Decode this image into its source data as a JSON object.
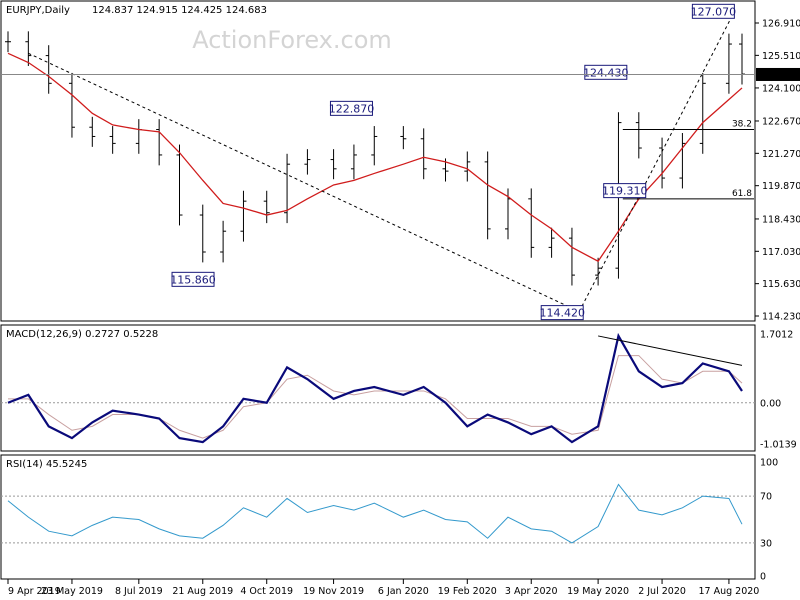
{
  "header": {
    "symbol": "EURJPY,Daily",
    "ohlc": "124.837 124.915 124.425 124.683"
  },
  "watermark": "ActionForex.com",
  "colors": {
    "bars": "#000000",
    "sma": "#d01c1c",
    "macd": "#0a0a7a",
    "signal": "#c8a0a0",
    "rsi": "#3399cc",
    "trendline": "#000000",
    "label_border": "#1a1a7a",
    "last_price_bg": "#000000"
  },
  "chart_data": [
    {
      "type": "line",
      "title": "EURJPY,Daily",
      "subtitle": "124.837 124.915 124.425 124.683",
      "x_ticks": [
        "9 Apr 2019",
        "23 May 2019",
        "8 Jul 2019",
        "21 Aug 2019",
        "4 Oct 2019",
        "19 Nov 2019",
        "6 Jan 2020",
        "19 Feb 2020",
        "3 Apr 2020",
        "19 May 2020",
        "2 Jul 2020",
        "17 Aug 2020"
      ],
      "y_ticks": [
        "126.910",
        "125.510",
        "124.100",
        "122.670",
        "121.270",
        "119.870",
        "118.430",
        "117.030",
        "115.630",
        "114.230"
      ],
      "ylim": [
        114.23,
        127.3
      ],
      "last_price": "124.683",
      "x": [
        "2019-04-09",
        "2019-04-23",
        "2019-05-07",
        "2019-05-23",
        "2019-06-06",
        "2019-06-20",
        "2019-07-08",
        "2019-07-22",
        "2019-08-05",
        "2019-08-21",
        "2019-09-04",
        "2019-09-18",
        "2019-10-04",
        "2019-10-18",
        "2019-11-01",
        "2019-11-19",
        "2019-12-03",
        "2019-12-17",
        "2020-01-06",
        "2020-01-20",
        "2020-02-04",
        "2020-02-19",
        "2020-03-04",
        "2020-03-18",
        "2020-04-03",
        "2020-04-17",
        "2020-05-01",
        "2020-05-19",
        "2020-06-02",
        "2020-06-16",
        "2020-07-02",
        "2020-07-16",
        "2020-07-30",
        "2020-08-17",
        "2020-08-26"
      ],
      "series": [
        {
          "values": [
            126.1,
            125.5,
            124.3,
            122.4,
            122.0,
            121.7,
            122.3,
            121.2,
            118.6,
            117.0,
            117.9,
            119.2,
            118.7,
            120.8,
            121.0,
            120.6,
            121.2,
            122.0,
            121.9,
            120.6,
            120.5,
            120.9,
            118.0,
            119.3,
            117.2,
            117.6,
            116.0,
            116.3,
            122.6,
            121.5,
            120.2,
            121.7,
            124.3,
            126.0,
            124.7
          ]
        },
        {
          "values": [
            125.6,
            125.2,
            124.6,
            123.8,
            123.0,
            122.5,
            122.3,
            122.2,
            121.3,
            120.1,
            119.1,
            118.9,
            118.6,
            118.8,
            119.3,
            119.9,
            120.1,
            120.4,
            120.8,
            121.1,
            120.9,
            120.6,
            119.9,
            119.4,
            118.6,
            118.0,
            117.2,
            116.6,
            117.9,
            119.3,
            120.4,
            121.5,
            122.6,
            123.6,
            124.1
          ]
        }
      ],
      "annotations": [
        {
          "label": "127.070",
          "x": "2020-08-18",
          "y": 127.07
        },
        {
          "label": "124.430",
          "x": "2020-06-05",
          "y": 124.43
        },
        {
          "label": "122.870",
          "x": "2019-12-13",
          "y": 122.87
        },
        {
          "label": "115.860",
          "x": "2019-08-26",
          "y": 115.86
        },
        {
          "label": "114.420",
          "x": "2020-05-06",
          "y": 114.42
        },
        {
          "label": "119.310",
          "x": "2020-06-18",
          "y": 119.31
        }
      ],
      "fib_levels": [
        {
          "label": "38.2",
          "y": 122.3
        },
        {
          "label": "61.8",
          "y": 119.3
        }
      ]
    },
    {
      "type": "line",
      "title": "MACD(12,26,9) 0.2727 0.5228",
      "y_ticks": [
        "1.7012",
        "0.00",
        "-1.0139"
      ],
      "ylim": [
        -1.1,
        1.8
      ],
      "x": [
        "2019-04-09",
        "2019-04-23",
        "2019-05-07",
        "2019-05-23",
        "2019-06-06",
        "2019-06-20",
        "2019-07-08",
        "2019-07-22",
        "2019-08-05",
        "2019-08-21",
        "2019-09-04",
        "2019-09-18",
        "2019-10-04",
        "2019-10-18",
        "2019-11-01",
        "2019-11-19",
        "2019-12-03",
        "2019-12-17",
        "2020-01-06",
        "2020-01-20",
        "2020-02-04",
        "2020-02-19",
        "2020-03-04",
        "2020-03-18",
        "2020-04-03",
        "2020-04-17",
        "2020-05-01",
        "2020-05-19",
        "2020-06-02",
        "2020-06-16",
        "2020-07-02",
        "2020-07-16",
        "2020-07-30",
        "2020-08-17",
        "2020-08-26"
      ],
      "series": [
        {
          "values": [
            0.0,
            0.2,
            -0.6,
            -0.9,
            -0.5,
            -0.2,
            -0.3,
            -0.4,
            -0.9,
            -1.0,
            -0.6,
            0.1,
            0.0,
            0.9,
            0.6,
            0.1,
            0.3,
            0.4,
            0.2,
            0.4,
            0.0,
            -0.6,
            -0.3,
            -0.5,
            -0.8,
            -0.6,
            -1.0,
            -0.6,
            1.7,
            0.8,
            0.4,
            0.5,
            1.0,
            0.8,
            0.3
          ]
        },
        {
          "values": [
            0.1,
            0.1,
            -0.3,
            -0.7,
            -0.6,
            -0.3,
            -0.3,
            -0.4,
            -0.7,
            -0.9,
            -0.7,
            -0.1,
            0.0,
            0.6,
            0.7,
            0.3,
            0.2,
            0.3,
            0.3,
            0.3,
            0.1,
            -0.4,
            -0.4,
            -0.4,
            -0.6,
            -0.6,
            -0.8,
            -0.7,
            1.2,
            1.2,
            0.6,
            0.5,
            0.8,
            0.8,
            0.5
          ]
        }
      ]
    },
    {
      "type": "line",
      "title": "RSI(14) 45.5245",
      "y_ticks": [
        "100",
        "70",
        "30",
        "0"
      ],
      "ylim": [
        0,
        100
      ],
      "x": [
        "2019-04-09",
        "2019-04-23",
        "2019-05-07",
        "2019-05-23",
        "2019-06-06",
        "2019-06-20",
        "2019-07-08",
        "2019-07-22",
        "2019-08-05",
        "2019-08-21",
        "2019-09-04",
        "2019-09-18",
        "2019-10-04",
        "2019-10-18",
        "2019-11-01",
        "2019-11-19",
        "2019-12-03",
        "2019-12-17",
        "2020-01-06",
        "2020-01-20",
        "2020-02-04",
        "2020-02-19",
        "2020-03-04",
        "2020-03-18",
        "2020-04-03",
        "2020-04-17",
        "2020-05-01",
        "2020-05-19",
        "2020-06-02",
        "2020-06-16",
        "2020-07-02",
        "2020-07-16",
        "2020-07-30",
        "2020-08-17",
        "2020-08-26"
      ],
      "series": [
        {
          "values": [
            66,
            52,
            40,
            36,
            45,
            52,
            50,
            42,
            36,
            34,
            45,
            60,
            52,
            68,
            56,
            62,
            58,
            64,
            52,
            58,
            50,
            48,
            34,
            52,
            42,
            40,
            30,
            44,
            80,
            58,
            54,
            60,
            70,
            68,
            46
          ]
        }
      ]
    }
  ]
}
